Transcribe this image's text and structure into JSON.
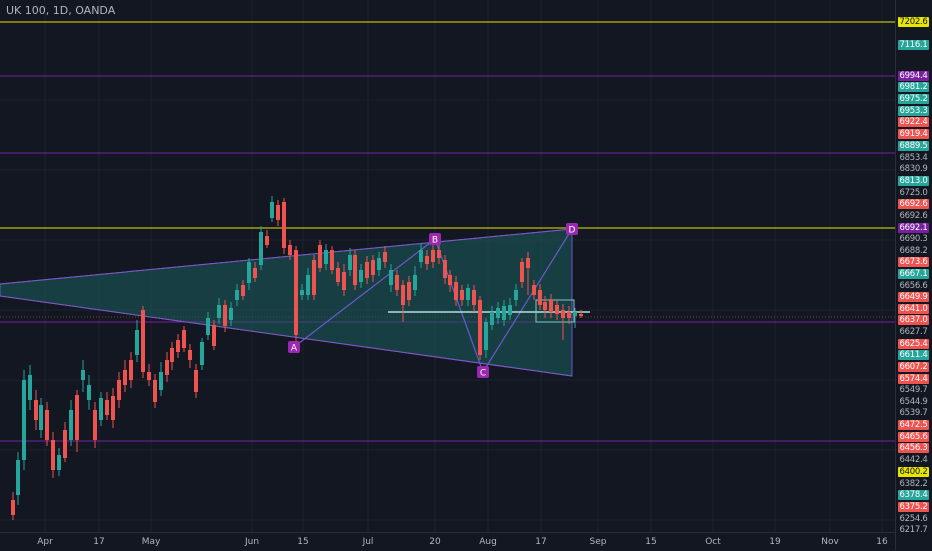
{
  "symbol_title": "UK 100, 1D, OANDA",
  "price_labels": [
    {
      "text": "7202.6",
      "style": "yellow"
    },
    {
      "text": "7116.1",
      "style": "green"
    },
    {
      "text": "6994.4",
      "style": "purple"
    },
    {
      "text": "6981.2",
      "style": "green"
    },
    {
      "text": "6975.2",
      "style": "green"
    },
    {
      "text": "6953.3",
      "style": "green"
    },
    {
      "text": "6922.4",
      "style": "red"
    },
    {
      "text": "6919.4",
      "style": "red"
    },
    {
      "text": "6889.5",
      "style": "green"
    },
    {
      "text": "6853.4",
      "style": "gray"
    },
    {
      "text": "6830.9",
      "style": "gray"
    },
    {
      "text": "6813.0",
      "style": "green"
    },
    {
      "text": "6725.0",
      "style": "gray"
    },
    {
      "text": "6692.6",
      "style": "red"
    },
    {
      "text": "6692.6",
      "style": "gray"
    },
    {
      "text": "6692.1",
      "style": "purple"
    },
    {
      "text": "6690.3",
      "style": "gray"
    },
    {
      "text": "6688.2",
      "style": "gray"
    },
    {
      "text": "6673.6",
      "style": "red"
    },
    {
      "text": "6667.1",
      "style": "green"
    },
    {
      "text": "6656.6",
      "style": "gray"
    },
    {
      "text": "6649.9",
      "style": "red"
    },
    {
      "text": "6641.0",
      "style": "red"
    },
    {
      "text": "6637.0",
      "style": "red"
    },
    {
      "text": "6627.7",
      "style": "gray"
    },
    {
      "text": "6625.4",
      "style": "red"
    },
    {
      "text": "6611.4",
      "style": "green"
    },
    {
      "text": "6607.2",
      "style": "red"
    },
    {
      "text": "6574.4",
      "style": "red"
    },
    {
      "text": "6549.7",
      "style": "gray"
    },
    {
      "text": "6544.9",
      "style": "gray"
    },
    {
      "text": "6539.7",
      "style": "gray"
    },
    {
      "text": "6472.5",
      "style": "red"
    },
    {
      "text": "6465.6",
      "style": "red"
    },
    {
      "text": "6456.3",
      "style": "red"
    },
    {
      "text": "6442.4",
      "style": "gray"
    },
    {
      "text": "6400.2",
      "style": "yellow"
    },
    {
      "text": "6382.2",
      "style": "gray"
    },
    {
      "text": "6378.4",
      "style": "green"
    },
    {
      "text": "6375.2",
      "style": "red"
    },
    {
      "text": "6254.6",
      "style": "gray"
    },
    {
      "text": "6217.7",
      "style": "gray"
    }
  ],
  "time_labels": [
    "Apr",
    "17",
    "May",
    "Jun",
    "15",
    "Jul",
    "20",
    "Aug",
    "17",
    "Sep",
    "15",
    "Oct",
    "19",
    "Nov",
    "16"
  ],
  "pattern_points": [
    "A",
    "B",
    "C",
    "D"
  ],
  "colors": {
    "background": "#131722",
    "bull": "#26a69a",
    "bear": "#ef5350",
    "yellow_line": "#e6e600",
    "purple_line": "#7b1fa2",
    "pattern_fill": "#1f6b6b",
    "pattern_stroke": "#7e57c2"
  }
}
